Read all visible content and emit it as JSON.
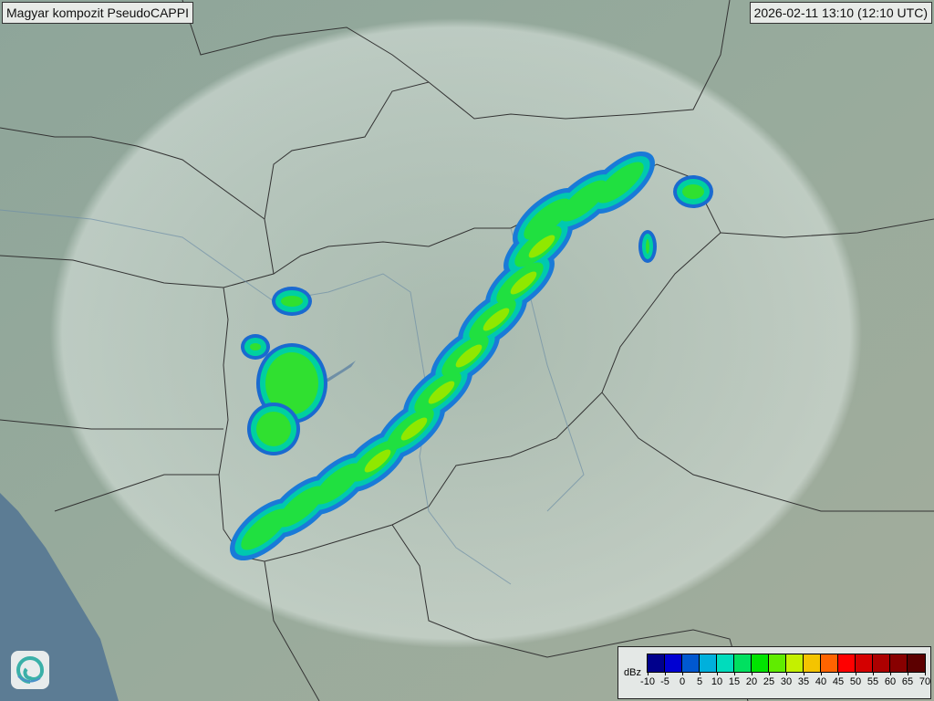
{
  "title": "Magyar kompozit  PseudoCAPPI",
  "timestamp": "2026-02-11 13:10 (12:10 UTC)",
  "legend": {
    "unit": "dBz",
    "ticks": [
      "-10",
      "-5",
      "0",
      "5",
      "10",
      "15",
      "20",
      "25",
      "30",
      "35",
      "40",
      "45",
      "50",
      "55",
      "60",
      "65",
      "70"
    ],
    "colors": [
      "#00008c",
      "#0000d2",
      "#0058d0",
      "#00b0dc",
      "#00dcbc",
      "#00e060",
      "#00e400",
      "#60ec00",
      "#c4f000",
      "#f4c400",
      "#ff6400",
      "#ff0000",
      "#d40000",
      "#ac0000",
      "#880000",
      "#5c0000"
    ]
  },
  "colors": {
    "terrain": "#8fa59a",
    "radar_coverage": "#c8d6ce",
    "border": "#333333",
    "sea": "#5a7a90"
  },
  "logo": {
    "icon": "spiral-logo-icon"
  }
}
